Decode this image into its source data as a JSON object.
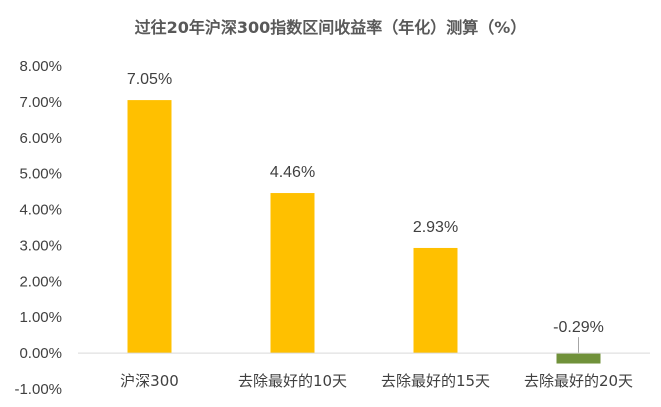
{
  "chart_data": {
    "type": "bar",
    "title": "过往20年沪深300指数区间收益率（年化）测算（%）",
    "categories": [
      "沪深300",
      "去除最好的10天",
      "去除最好的15天",
      "去除最好的20天"
    ],
    "values": [
      7.05,
      4.46,
      2.93,
      -0.29
    ],
    "data_labels": [
      "7.05%",
      "4.46%",
      "2.93%",
      "-0.29%"
    ],
    "y_ticks": [
      -1,
      0,
      1,
      2,
      3,
      4,
      5,
      6,
      7,
      8
    ],
    "y_tick_labels": [
      "-1.00%",
      "0.00%",
      "1.00%",
      "2.00%",
      "3.00%",
      "4.00%",
      "5.00%",
      "6.00%",
      "7.00%",
      "8.00%"
    ],
    "ylim": [
      -1,
      8
    ],
    "xlabel": "",
    "ylabel": "",
    "grid": false,
    "legend": "none",
    "colors": {
      "positive": "#FFC000",
      "negative": "#70913A",
      "axis": "#D9D9D9",
      "text": "#404040",
      "title": "#595959"
    }
  }
}
